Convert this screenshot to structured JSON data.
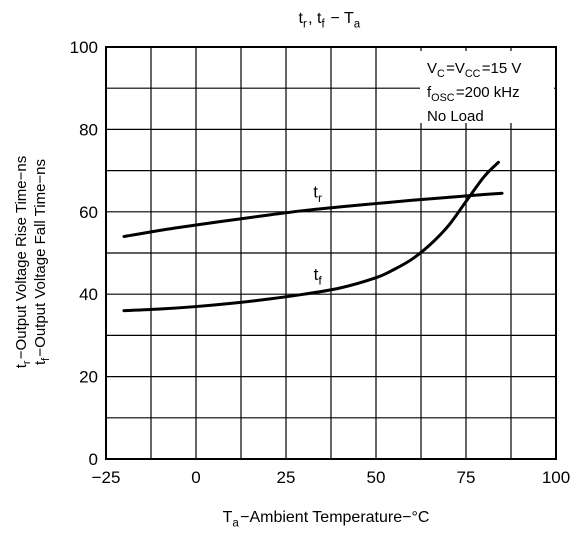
{
  "chart_data": {
    "type": "line",
    "title": {
      "base": "t",
      "r_sub": "r",
      "sep": ", ",
      "f_base": "t",
      "f_sub": "f",
      "dash": " − ",
      "ta_base": "T",
      "ta_sub": "a"
    },
    "xlabel": {
      "base": "T",
      "sub": "a",
      "rest": "−Ambient Temperature−°C"
    },
    "ylabel": {
      "line1": {
        "base": "t",
        "sub": "r",
        "rest": "−Output Voltage Rise Time−ns"
      },
      "line2": {
        "base": "t",
        "sub": "f",
        "rest": "−Output Voltage Fall Time−ns"
      }
    },
    "xlim": [
      -25,
      100
    ],
    "ylim": [
      0,
      100
    ],
    "x_ticks": [
      -25,
      0,
      25,
      50,
      75,
      100
    ],
    "x_tick_labels": [
      "−25",
      "0",
      "25",
      "50",
      "75",
      "100"
    ],
    "y_ticks": [
      0,
      20,
      40,
      60,
      80,
      100
    ],
    "y_tick_labels": [
      "0",
      "20",
      "40",
      "60",
      "80",
      "100"
    ],
    "x_minor_step": 12.5,
    "y_minor_step": 10,
    "grid": true,
    "conditions": [
      {
        "base": "V",
        "sub": "C",
        "mid": "=V",
        "sub2": "CC",
        "rest": "=15 V"
      },
      {
        "base": "f",
        "sub": "OSC",
        "mid": "",
        "sub2": "",
        "rest": "=200 kHz"
      },
      {
        "base": "No Load",
        "sub": "",
        "mid": "",
        "sub2": "",
        "rest": ""
      }
    ],
    "series": [
      {
        "label_base": "t",
        "label_sub": "r",
        "x": [
          -20,
          -10,
          0,
          10,
          20,
          30,
          40,
          50,
          60,
          70,
          80,
          85
        ],
        "y": [
          54,
          55.5,
          56.8,
          58,
          59.2,
          60.3,
          61.2,
          62,
          62.8,
          63.5,
          64.2,
          64.5
        ]
      },
      {
        "label_base": "t",
        "label_sub": "f",
        "x": [
          -20,
          -10,
          0,
          10,
          20,
          30,
          40,
          50,
          55,
          60,
          65,
          70,
          75,
          80,
          84
        ],
        "y": [
          36,
          36.4,
          37,
          37.8,
          38.8,
          40,
          41.5,
          44,
          46,
          48.5,
          52,
          56.5,
          62.5,
          68.5,
          72
        ]
      }
    ],
    "series_label_anchors": [
      {
        "x": 34,
        "y": 63.5
      },
      {
        "x": 34,
        "y": 43.5
      }
    ]
  }
}
